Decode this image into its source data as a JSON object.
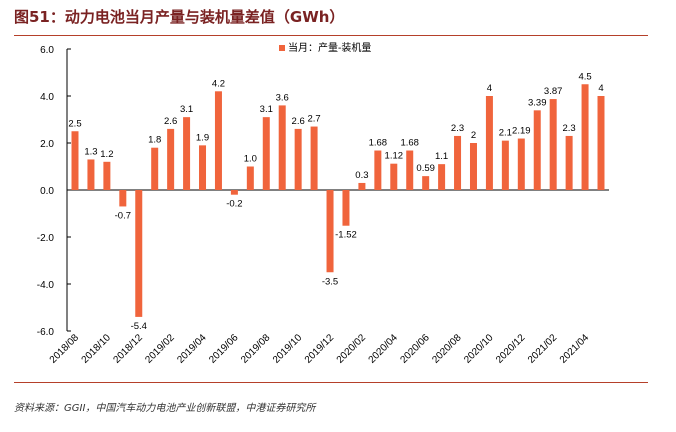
{
  "title": "图51：动力电池当月产量与装机量差值（GWh）",
  "source": "资料来源：GGII，中国汽车动力电池产业创新联盟，中港证券研究所",
  "chart_data": {
    "type": "bar",
    "title": "图51：动力电池当月产量与装机量差值（GWh）",
    "xlabel": "",
    "ylabel": "",
    "ylim": [
      -6,
      6
    ],
    "yticks": [
      "-6.0",
      "-4.0",
      "-2.0",
      "0.0",
      "2.0",
      "4.0",
      "6.0"
    ],
    "legend": {
      "label": "当月：产量-装机量",
      "position": "top-center"
    },
    "color": "#f0643c",
    "categories": [
      "2018/08",
      "2018/09",
      "2018/10",
      "2018/11",
      "2018/12",
      "2019/01",
      "2019/02",
      "2019/03",
      "2019/04",
      "2019/05",
      "2019/06",
      "2019/07",
      "2019/08",
      "2019/09",
      "2019/10",
      "2019/11",
      "2019/12",
      "2020/01",
      "2020/02",
      "2020/03",
      "2020/04",
      "2020/05",
      "2020/06",
      "2020/07",
      "2020/08",
      "2020/09",
      "2020/10",
      "2020/11",
      "2020/12",
      "2021/01",
      "2021/02",
      "2021/03",
      "2021/04",
      "2021/05"
    ],
    "xtick_labels": [
      "2018/08",
      "2018/10",
      "2018/12",
      "2019/02",
      "2019/04",
      "2019/06",
      "2019/08",
      "2019/10",
      "2019/12",
      "2020/02",
      "2020/04",
      "2020/06",
      "2020/08",
      "2020/10",
      "2020/12",
      "2021/02",
      "2021/04"
    ],
    "values": [
      2.5,
      1.3,
      1.2,
      -0.7,
      -5.4,
      1.8,
      2.6,
      3.1,
      1.9,
      4.2,
      -0.2,
      1.0,
      3.1,
      3.6,
      2.6,
      2.7,
      -3.5,
      -1.52,
      0.3,
      1.68,
      1.12,
      1.68,
      0.59,
      1.1,
      2.3,
      2,
      4,
      2.1,
      2.19,
      3.39,
      3.87,
      2.3,
      4.5,
      4
    ],
    "data_labels": [
      "2.5",
      "1.3",
      "1.2",
      "-0.7",
      "-5.4",
      "1.8",
      "2.6",
      "3.1",
      "1.9",
      "4.2",
      "-0.2",
      "1.0",
      "3.1",
      "3.6",
      "2.6",
      "2.7",
      "-3.5",
      "-1.52",
      "0.3",
      "1.68",
      "1.12",
      "1.68",
      "0.59",
      "1.1",
      "2.3",
      "2",
      "4",
      "2.1",
      "2.19",
      "3.39",
      "3.87",
      "2.3",
      "4.5",
      "4"
    ]
  }
}
